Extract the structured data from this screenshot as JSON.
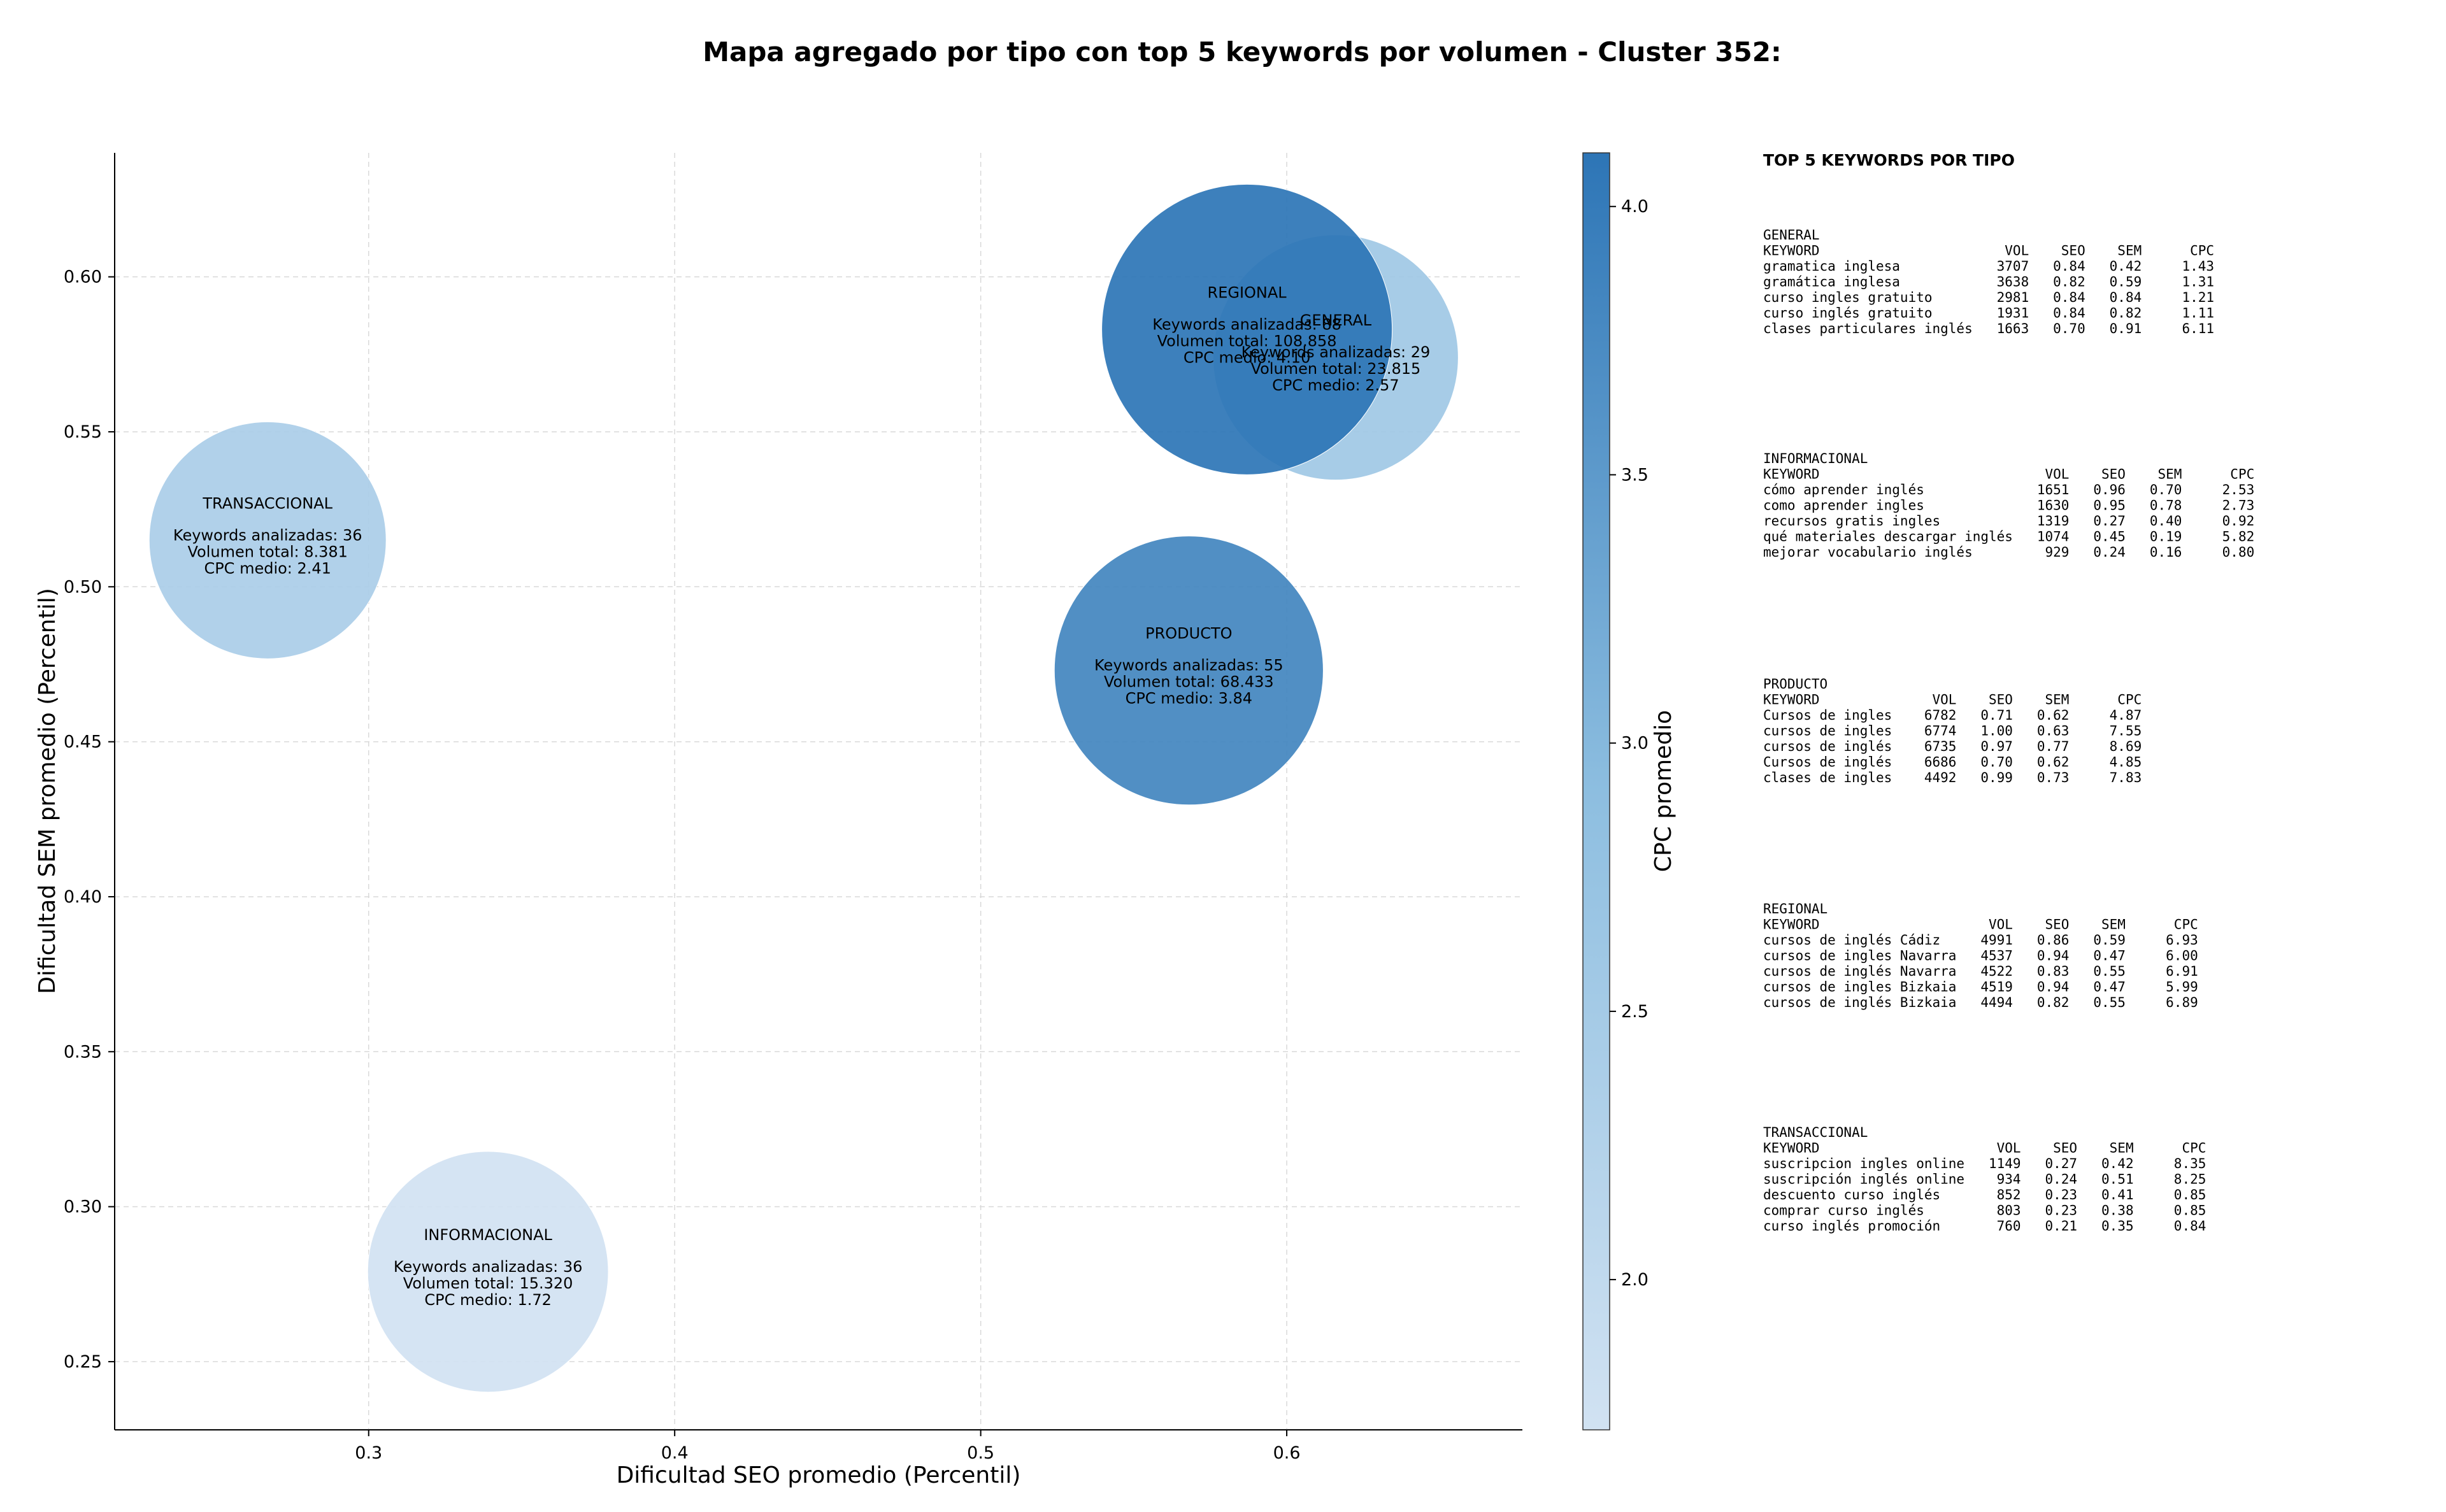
{
  "chart_data": {
    "type": "scatter",
    "title": "Mapa agregado por tipo con top 5 keywords por volumen - Cluster 352:",
    "xlabel": "Dificultad SEO promedio (Percentil)",
    "ylabel": "Dificultad SEM promedio (Percentil)",
    "xlim": [
      0.217,
      0.677
    ],
    "ylim": [
      0.228,
      0.64
    ],
    "xticks": [
      "0.3",
      "0.4",
      "0.5",
      "0.6"
    ],
    "yticks": [
      "0.25",
      "0.30",
      "0.35",
      "0.40",
      "0.45",
      "0.50",
      "0.55",
      "0.60"
    ],
    "grid": true,
    "colorbar": {
      "label": "CPC promedio",
      "min": 1.72,
      "max": 4.1,
      "ticks": [
        "2.0",
        "2.5",
        "3.0",
        "3.5",
        "4.0"
      ],
      "color_low": "#d1e2f2",
      "color_high": "#2d75b6"
    },
    "points": [
      {
        "label": "REGIONAL",
        "x": 0.587,
        "y": 0.583,
        "keywords_line": "Keywords analizadas: 88",
        "volume_line": "Volumen total: 108.858",
        "cpc_line": "CPC medio: 4.10",
        "cpc": 4.1,
        "volume": 108858
      },
      {
        "label": "GENERAL",
        "x": 0.616,
        "y": 0.574,
        "keywords_line": "Keywords analizadas: 29",
        "volume_line": "Volumen total: 23.815",
        "cpc_line": "CPC medio: 2.57",
        "cpc": 2.57,
        "volume": 23815
      },
      {
        "label": "TRANSACCIONAL",
        "x": 0.267,
        "y": 0.515,
        "keywords_line": "Keywords analizadas: 36",
        "volume_line": "Volumen total: 8.381",
        "cpc_line": "CPC medio: 2.41",
        "cpc": 2.41,
        "volume": 8381
      },
      {
        "label": "PRODUCTO",
        "x": 0.568,
        "y": 0.473,
        "keywords_line": "Keywords analizadas: 55",
        "volume_line": "Volumen total: 68.433",
        "cpc_line": "CPC medio: 3.84",
        "cpc": 3.84,
        "volume": 68433
      },
      {
        "label": "INFORMACIONAL",
        "x": 0.339,
        "y": 0.279,
        "keywords_line": "Keywords analizadas: 36",
        "volume_line": "Volumen total: 15.320",
        "cpc_line": "CPC medio: 1.72",
        "cpc": 1.72,
        "volume": 15320
      }
    ]
  },
  "tables": {
    "heading": "TOP 5 KEYWORDS POR TIPO",
    "groups": [
      {
        "name": "GENERAL",
        "lines": [
          "KEYWORD                       VOL    SEO    SEM      CPC",
          "gramatica inglesa            3707   0.84   0.42     1.43",
          "gramática inglesa            3638   0.82   0.59     1.31",
          "curso ingles gratuito        2981   0.84   0.84     1.21",
          "curso inglés gratuito        1931   0.84   0.82     1.11",
          "clases particulares inglés   1663   0.70   0.91     6.11"
        ]
      },
      {
        "name": "INFORMACIONAL",
        "lines": [
          "KEYWORD                            VOL    SEO    SEM      CPC",
          "cómo aprender inglés              1651   0.96   0.70     2.53",
          "como aprender ingles              1630   0.95   0.78     2.73",
          "recursos gratis ingles            1319   0.27   0.40     0.92",
          "qué materiales descargar inglés   1074   0.45   0.19     5.82",
          "mejorar vocabulario inglés         929   0.24   0.16     0.80"
        ]
      },
      {
        "name": "PRODUCTO",
        "lines": [
          "KEYWORD              VOL    SEO    SEM      CPC",
          "Cursos de ingles    6782   0.71   0.62     4.87",
          "cursos de ingles    6774   1.00   0.63     7.55",
          "cursos de inglés    6735   0.97   0.77     8.69",
          "Cursos de inglés    6686   0.70   0.62     4.85",
          "clases de ingles    4492   0.99   0.73     7.83"
        ]
      },
      {
        "name": "REGIONAL",
        "lines": [
          "KEYWORD                     VOL    SEO    SEM      CPC",
          "cursos de inglés Cádiz     4991   0.86   0.59     6.93",
          "cursos de ingles Navarra   4537   0.94   0.47     6.00",
          "cursos de inglés Navarra   4522   0.83   0.55     6.91",
          "cursos de ingles Bizkaia   4519   0.94   0.47     5.99",
          "cursos de inglés Bizkaia   4494   0.82   0.55     6.89"
        ]
      },
      {
        "name": "TRANSACCIONAL",
        "lines": [
          "KEYWORD                      VOL    SEO    SEM      CPC",
          "suscripcion ingles online   1149   0.27   0.42     8.35",
          "suscripción inglés online    934   0.24   0.51     8.25",
          "descuento curso inglés       852   0.23   0.41     0.85",
          "comprar curso inglés         803   0.23   0.38     0.85",
          "curso inglés promoción       760   0.21   0.35     0.84"
        ]
      }
    ]
  }
}
